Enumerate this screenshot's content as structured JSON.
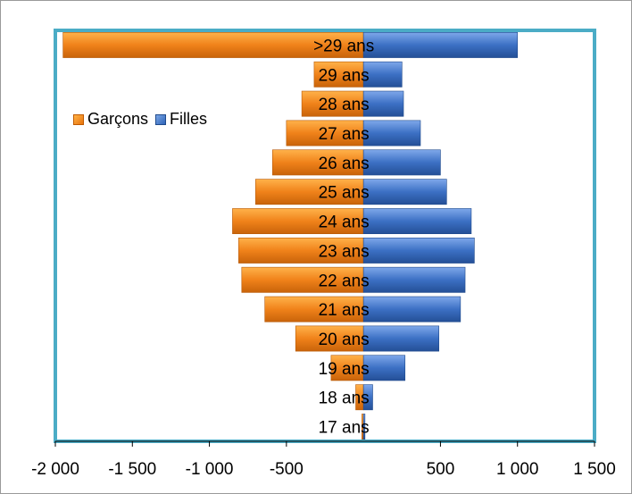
{
  "chart_data": {
    "type": "bar",
    "orientation": "horizontal",
    "stacked_pyramid": true,
    "categories": [
      "17 ans",
      "18 ans",
      "19 ans",
      "20 ans",
      "21 ans",
      "22 ans",
      "23 ans",
      "24 ans",
      "25 ans",
      "26 ans",
      "27 ans",
      "28 ans",
      "29 ans",
      ">29 ans"
    ],
    "series": [
      {
        "name": "Garçons",
        "color": "#f28a1e",
        "values": [
          -10,
          -50,
          -210,
          -440,
          -640,
          -790,
          -810,
          -850,
          -700,
          -590,
          -500,
          -400,
          -320,
          -1950
        ]
      },
      {
        "name": "Filles",
        "color": "#3b6fc2",
        "values": [
          10,
          60,
          270,
          490,
          630,
          660,
          720,
          700,
          540,
          500,
          370,
          260,
          250,
          1000
        ]
      }
    ],
    "xlim": [
      -2000,
      1500
    ],
    "xticks": [
      -2000,
      -1500,
      -1000,
      -500,
      500,
      1000,
      1500
    ],
    "xtick_labels": [
      "-2 000",
      "-1 500",
      "-1 000",
      "-500",
      "500",
      "1 000",
      "1 500"
    ],
    "legend_position": "upper-left-inside",
    "plot_border_color": "#4bacc6",
    "grid": false
  }
}
